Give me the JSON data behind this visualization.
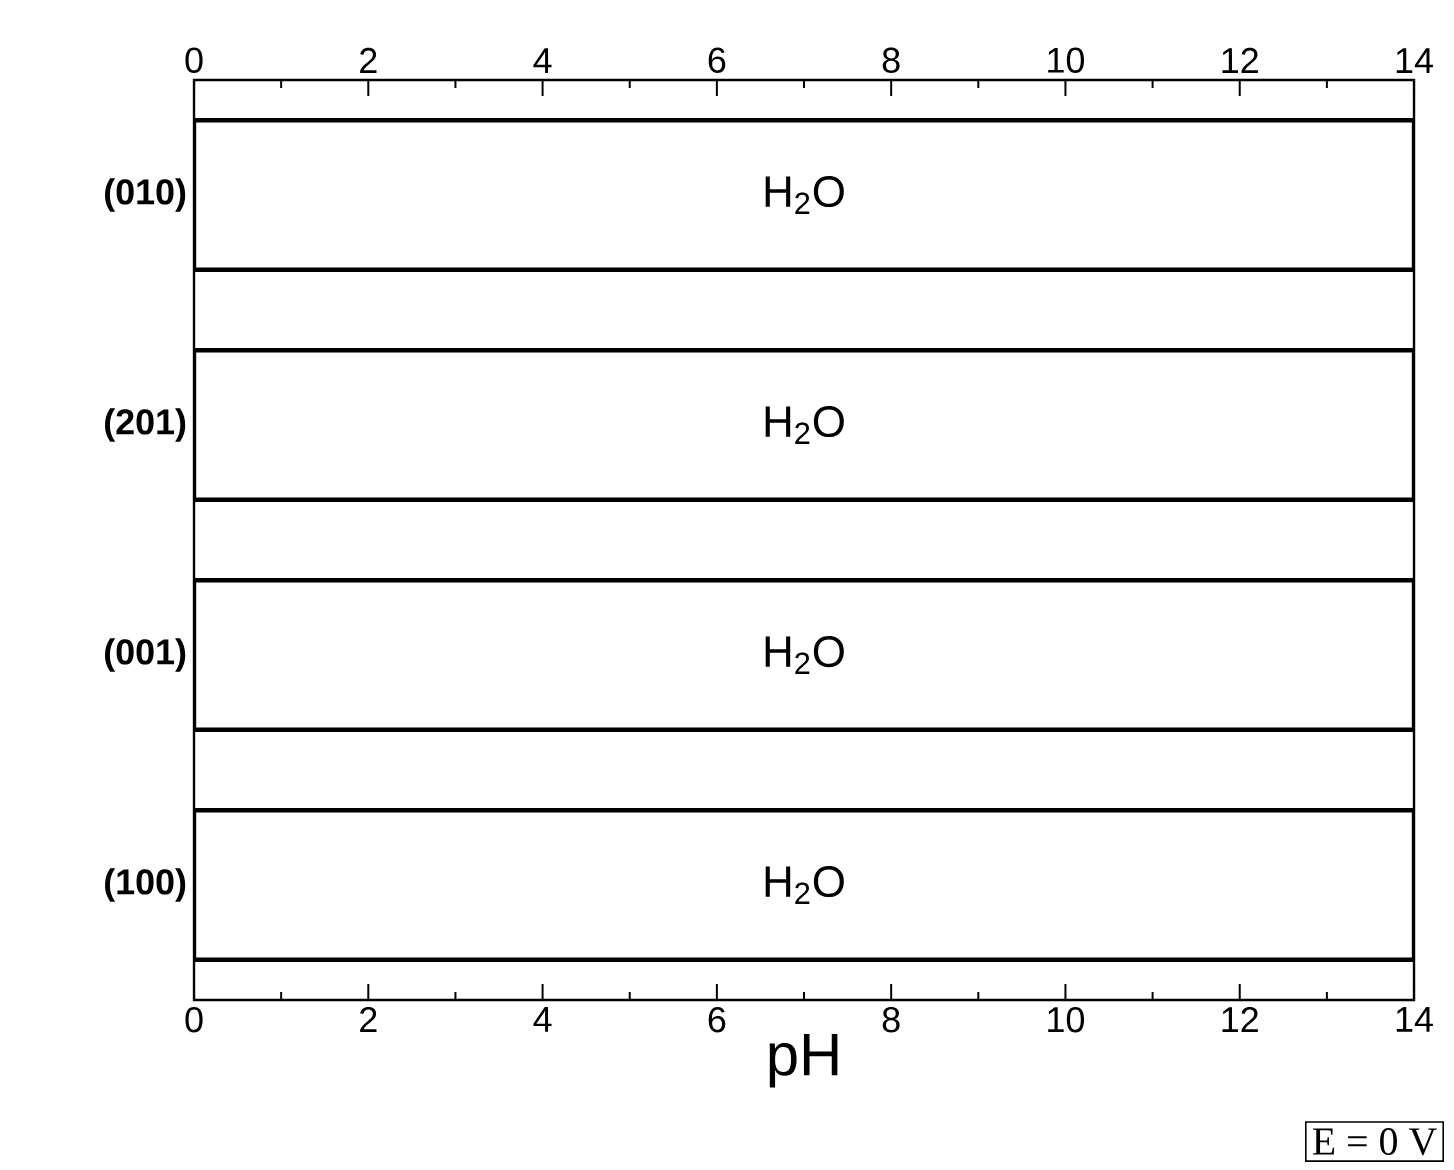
{
  "chart_data": {
    "type": "bar",
    "orientation": "horizontal",
    "xlabel": "pH",
    "categories": [
      "(010)",
      "(201)",
      "(001)",
      "(100)"
    ],
    "values": [
      14,
      14,
      14,
      14
    ],
    "color": "#ffffff",
    "xlim": [
      0,
      14
    ],
    "xticks": [
      0,
      2,
      4,
      6,
      8,
      10,
      12,
      14
    ],
    "x2lim": [
      0,
      14
    ],
    "x2ticks": [
      0,
      2,
      4,
      6,
      8,
      10,
      12,
      14
    ],
    "annotations": [
      "H$_{2}$O",
      "H$_{2}$O",
      "H$_{2}$O",
      "H$_{2}$O",
      "E = 0 V"
    ],
    "grid": false
  }
}
